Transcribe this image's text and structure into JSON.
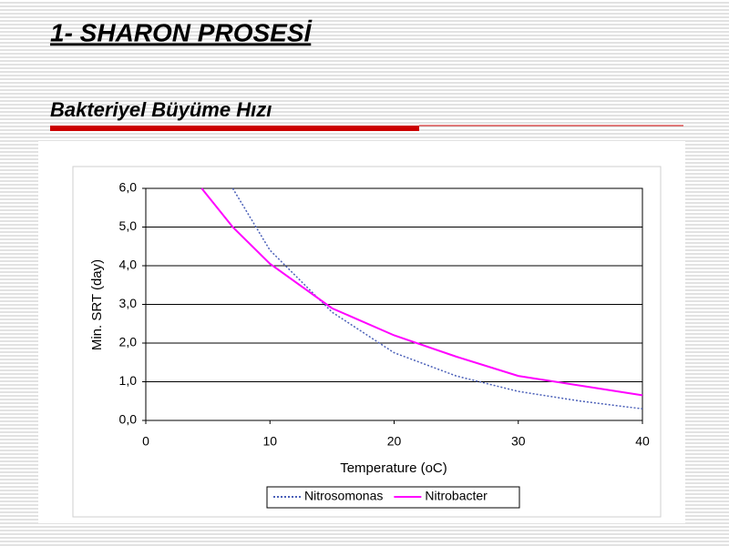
{
  "header": {
    "title": "1- SHARON PROSESİ",
    "subtitle": "Bakteriyel Büyüme Hızı"
  },
  "chart_data": {
    "type": "line",
    "x_label": "Temperature (oC)",
    "y_label": "Min. SRT (day)",
    "x": [
      4.5,
      7,
      10,
      15,
      20,
      25,
      30,
      35,
      40
    ],
    "series": [
      {
        "name": "Nitrosomonas",
        "color": "#4a5fb8",
        "dash": "dotted",
        "values": [
          null,
          6.0,
          4.4,
          2.8,
          1.75,
          1.15,
          0.75,
          0.5,
          0.3
        ]
      },
      {
        "name": "Nitrobacter",
        "color": "#ff00ff",
        "dash": "solid",
        "values": [
          6.0,
          5.0,
          4.05,
          2.9,
          2.2,
          1.65,
          1.15,
          0.9,
          0.65
        ]
      }
    ],
    "xlim": [
      0,
      40
    ],
    "xticks": [
      0,
      10,
      20,
      30,
      40
    ],
    "ylim": [
      0,
      6
    ],
    "yticks": [
      {
        "value": 0,
        "label": "0,0"
      },
      {
        "value": 1,
        "label": "1,0"
      },
      {
        "value": 2,
        "label": "2,0"
      },
      {
        "value": 3,
        "label": "3,0"
      },
      {
        "value": 4,
        "label": "4,0"
      },
      {
        "value": 5,
        "label": "5,0"
      },
      {
        "value": 6,
        "label": "6,0"
      }
    ],
    "grid": true,
    "legend": "bottom"
  }
}
